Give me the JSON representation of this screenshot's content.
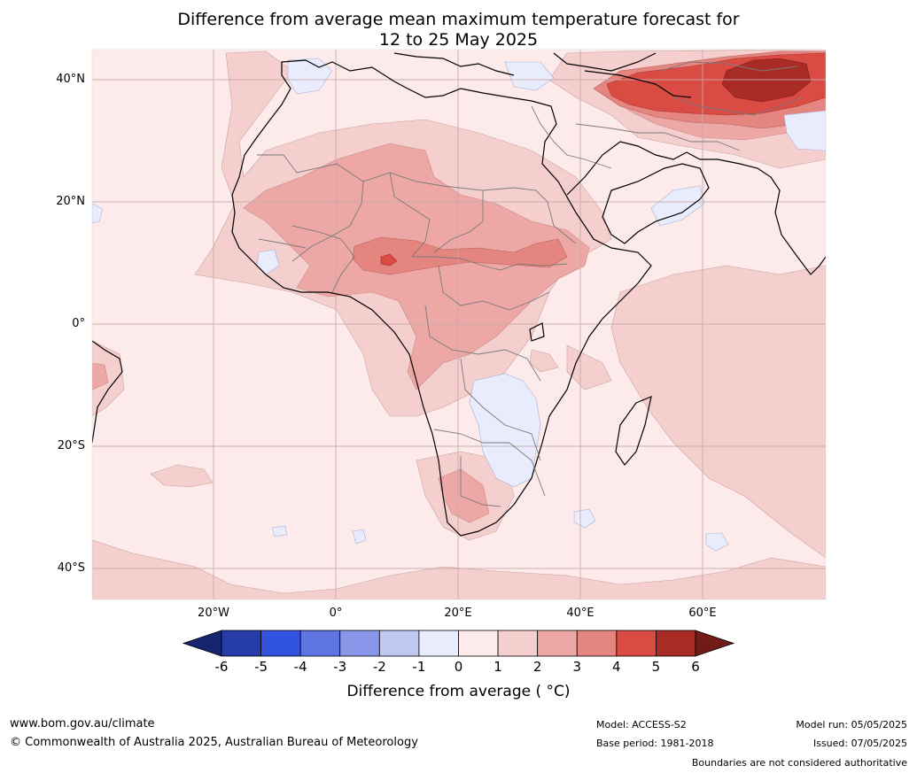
{
  "title_line1": "Difference from average mean maximum temperature forecast for",
  "title_line2": "12 to 25 May 2025",
  "lat_labels": [
    {
      "text": "40°N",
      "deg": 40
    },
    {
      "text": "20°N",
      "deg": 20
    },
    {
      "text": "0°",
      "deg": 0
    },
    {
      "text": "20°S",
      "deg": -20
    },
    {
      "text": "40°S",
      "deg": -40
    }
  ],
  "lon_labels": [
    {
      "text": "20°W",
      "deg": -20
    },
    {
      "text": "0°",
      "deg": 0
    },
    {
      "text": "20°E",
      "deg": 20
    },
    {
      "text": "40°E",
      "deg": 40
    },
    {
      "text": "60°E",
      "deg": 60
    }
  ],
  "colorbar": {
    "label": "Difference from average ( °C)",
    "ticks": [
      "-6",
      "-5",
      "-4",
      "-3",
      "-2",
      "-1",
      "0",
      "1",
      "2",
      "3",
      "4",
      "5",
      "6"
    ],
    "colors": [
      "#172570",
      "#263ca8",
      "#3252e0",
      "#5d74e2",
      "#8796e8",
      "#c0c8f2",
      "#e8ecfc",
      "#fcebea",
      "#f5cfcd",
      "#eda8a6",
      "#e58580",
      "#d94b43",
      "#a82b26",
      "#701b18"
    ]
  },
  "footer": {
    "url": "www.bom.gov.au/climate",
    "copyright": "© Commonwealth of Australia 2025, Australian Bureau of Meteorology",
    "model": "Model: ACCESS-S2",
    "base_period": "Base period: 1981-2018",
    "model_run": "Model run: 05/05/2025",
    "issued": "Issued: 07/05/2025",
    "disclaimer": "Boundaries are not considered authoritative"
  }
}
